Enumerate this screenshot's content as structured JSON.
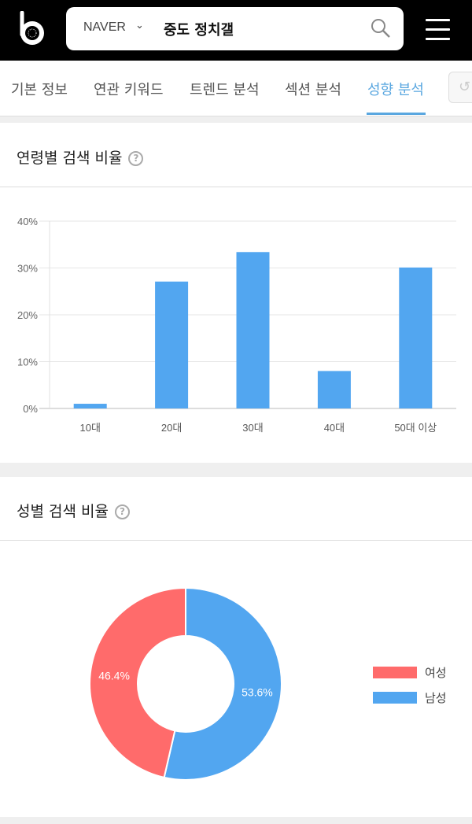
{
  "header": {
    "engine": "NAVER",
    "query": "중도 정치갤"
  },
  "tabs": [
    {
      "label": "기본 정보"
    },
    {
      "label": "연관 키워드"
    },
    {
      "label": "트렌드 분석"
    },
    {
      "label": "섹션 분석"
    },
    {
      "label": "성향 분석",
      "active": true
    }
  ],
  "age_section": {
    "title": "연령별 검색 비율"
  },
  "gender_section": {
    "title": "성별 검색 비율"
  },
  "colors": {
    "accent": "#5aa7e0",
    "bar": "#52a6f0",
    "female": "#ff6b6b",
    "male": "#52a6f0"
  },
  "chart_data": [
    {
      "type": "bar",
      "categories": [
        "10대",
        "20대",
        "30대",
        "40대",
        "50대 이상"
      ],
      "values": [
        1.0,
        27.1,
        33.4,
        8.0,
        30.1
      ],
      "yticks": [
        "0%",
        "10%",
        "20%",
        "30%",
        "40%"
      ],
      "ylim": [
        0,
        40
      ],
      "grid": true
    },
    {
      "type": "pie",
      "donut": true,
      "labels": [
        "여성",
        "남성"
      ],
      "values": [
        46.4,
        53.6
      ],
      "data_labels": [
        "46.4%",
        "53.6%"
      ],
      "legend": "right"
    }
  ]
}
